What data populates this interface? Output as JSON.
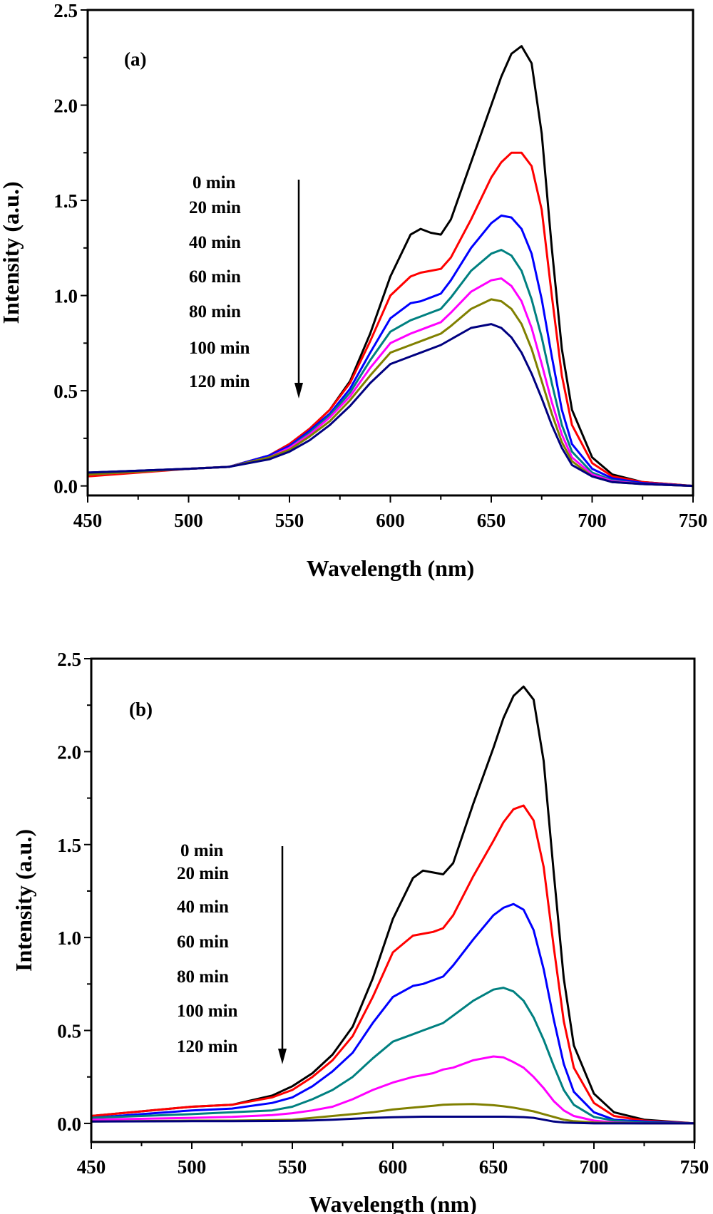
{
  "chart_data": [
    {
      "type": "line",
      "panel_label": "(a)",
      "xlabel": "Wavelength (nm)",
      "ylabel": "Intensity (a.u.)",
      "xlim": [
        450,
        750
      ],
      "ylim": [
        -0.05,
        2.5
      ],
      "xticks": [
        "450",
        "500",
        "550",
        "600",
        "650",
        "700",
        "750"
      ],
      "yticks": [
        "0.0",
        "0.5",
        "1.0",
        "1.5",
        "2.0",
        "2.5"
      ],
      "annotations": [
        "0 min",
        "20 min",
        "40 min",
        "60 min",
        "80 min",
        "100 min",
        "120 min"
      ],
      "x": [
        450,
        500,
        520,
        540,
        550,
        560,
        570,
        580,
        590,
        600,
        610,
        615,
        620,
        625,
        630,
        640,
        650,
        655,
        660,
        665,
        670,
        675,
        680,
        685,
        690,
        700,
        710,
        725,
        750
      ],
      "series": [
        {
          "name": "0 min",
          "color": "#000000",
          "values": [
            0.07,
            0.09,
            0.1,
            0.16,
            0.22,
            0.3,
            0.4,
            0.55,
            0.8,
            1.1,
            1.32,
            1.35,
            1.33,
            1.32,
            1.4,
            1.7,
            2.0,
            2.15,
            2.27,
            2.31,
            2.22,
            1.85,
            1.25,
            0.72,
            0.4,
            0.15,
            0.06,
            0.02,
            0
          ]
        },
        {
          "name": "20 min",
          "color": "#ff0000",
          "values": [
            0.05,
            0.09,
            0.1,
            0.16,
            0.22,
            0.3,
            0.4,
            0.54,
            0.76,
            1.0,
            1.1,
            1.12,
            1.13,
            1.14,
            1.2,
            1.4,
            1.62,
            1.7,
            1.75,
            1.75,
            1.68,
            1.45,
            1.0,
            0.58,
            0.32,
            0.12,
            0.05,
            0.02,
            0
          ]
        },
        {
          "name": "40 min",
          "color": "#0000ff",
          "values": [
            0.07,
            0.09,
            0.1,
            0.16,
            0.21,
            0.29,
            0.38,
            0.51,
            0.7,
            0.88,
            0.96,
            0.97,
            0.99,
            1.01,
            1.08,
            1.25,
            1.38,
            1.42,
            1.41,
            1.35,
            1.22,
            0.98,
            0.68,
            0.4,
            0.22,
            0.09,
            0.04,
            0.015,
            0
          ]
        },
        {
          "name": "60 min",
          "color": "#008080",
          "values": [
            0.06,
            0.09,
            0.1,
            0.15,
            0.2,
            0.28,
            0.37,
            0.49,
            0.66,
            0.81,
            0.87,
            0.89,
            0.91,
            0.93,
            0.99,
            1.13,
            1.22,
            1.24,
            1.21,
            1.13,
            0.98,
            0.78,
            0.54,
            0.32,
            0.18,
            0.07,
            0.03,
            0.01,
            0
          ]
        },
        {
          "name": "80 min",
          "color": "#ff00ff",
          "values": [
            0.06,
            0.09,
            0.1,
            0.15,
            0.2,
            0.27,
            0.36,
            0.47,
            0.62,
            0.75,
            0.8,
            0.82,
            0.84,
            0.86,
            0.91,
            1.02,
            1.08,
            1.09,
            1.05,
            0.97,
            0.83,
            0.64,
            0.44,
            0.27,
            0.15,
            0.06,
            0.025,
            0.01,
            0
          ]
        },
        {
          "name": "100 min",
          "color": "#808000",
          "values": [
            0.06,
            0.09,
            0.1,
            0.15,
            0.19,
            0.26,
            0.34,
            0.45,
            0.58,
            0.7,
            0.74,
            0.76,
            0.78,
            0.8,
            0.84,
            0.93,
            0.98,
            0.97,
            0.93,
            0.85,
            0.72,
            0.55,
            0.38,
            0.23,
            0.13,
            0.05,
            0.02,
            0.01,
            0
          ]
        },
        {
          "name": "120 min",
          "color": "#000080",
          "values": [
            0.07,
            0.09,
            0.1,
            0.14,
            0.18,
            0.24,
            0.32,
            0.42,
            0.54,
            0.64,
            0.68,
            0.7,
            0.72,
            0.74,
            0.77,
            0.83,
            0.85,
            0.83,
            0.78,
            0.7,
            0.59,
            0.46,
            0.32,
            0.2,
            0.11,
            0.05,
            0.02,
            0.01,
            0
          ]
        }
      ]
    },
    {
      "type": "line",
      "panel_label": "(b)",
      "xlabel": "Wavelength (nm)",
      "ylabel": "Intensity (a.u.)",
      "xlim": [
        450,
        750
      ],
      "ylim": [
        -0.1,
        2.5
      ],
      "xticks": [
        "450",
        "500",
        "550",
        "600",
        "650",
        "700",
        "750"
      ],
      "yticks": [
        "0.0",
        "0.5",
        "1.0",
        "1.5",
        "2.0",
        "2.5"
      ],
      "annotations": [
        "0 min",
        "20 min",
        "40 min",
        "60 min",
        "80 min",
        "100 min",
        "120 min"
      ],
      "x": [
        450,
        500,
        520,
        540,
        550,
        560,
        570,
        580,
        590,
        600,
        610,
        615,
        620,
        625,
        630,
        640,
        650,
        655,
        660,
        665,
        670,
        675,
        680,
        685,
        690,
        700,
        710,
        725,
        750
      ],
      "series": [
        {
          "name": "0 min",
          "color": "#000000",
          "values": [
            0.04,
            0.09,
            0.1,
            0.15,
            0.2,
            0.27,
            0.37,
            0.52,
            0.78,
            1.1,
            1.32,
            1.36,
            1.35,
            1.34,
            1.4,
            1.72,
            2.02,
            2.18,
            2.3,
            2.35,
            2.28,
            1.95,
            1.35,
            0.78,
            0.42,
            0.16,
            0.06,
            0.02,
            0
          ]
        },
        {
          "name": "20 min",
          "color": "#ff0000",
          "values": [
            0.04,
            0.09,
            0.1,
            0.14,
            0.18,
            0.25,
            0.34,
            0.47,
            0.68,
            0.92,
            1.01,
            1.02,
            1.03,
            1.05,
            1.12,
            1.33,
            1.52,
            1.62,
            1.69,
            1.71,
            1.63,
            1.38,
            0.95,
            0.55,
            0.3,
            0.11,
            0.04,
            0.015,
            0
          ]
        },
        {
          "name": "40 min",
          "color": "#0000ff",
          "values": [
            0.03,
            0.07,
            0.08,
            0.11,
            0.14,
            0.2,
            0.28,
            0.38,
            0.54,
            0.68,
            0.74,
            0.75,
            0.77,
            0.79,
            0.85,
            0.99,
            1.12,
            1.16,
            1.18,
            1.15,
            1.04,
            0.83,
            0.56,
            0.32,
            0.17,
            0.06,
            0.02,
            0.01,
            0
          ]
        },
        {
          "name": "60 min",
          "color": "#008080",
          "values": [
            0.03,
            0.05,
            0.06,
            0.07,
            0.09,
            0.13,
            0.18,
            0.25,
            0.35,
            0.44,
            0.48,
            0.5,
            0.52,
            0.54,
            0.58,
            0.66,
            0.72,
            0.73,
            0.71,
            0.66,
            0.57,
            0.45,
            0.31,
            0.18,
            0.1,
            0.035,
            0.015,
            0.005,
            0
          ]
        },
        {
          "name": "80 min",
          "color": "#ff00ff",
          "values": [
            0.02,
            0.03,
            0.035,
            0.045,
            0.055,
            0.07,
            0.09,
            0.13,
            0.18,
            0.22,
            0.25,
            0.26,
            0.27,
            0.29,
            0.3,
            0.34,
            0.36,
            0.355,
            0.33,
            0.3,
            0.25,
            0.19,
            0.12,
            0.07,
            0.04,
            0.015,
            0.005,
            0,
            0
          ]
        },
        {
          "name": "100 min",
          "color": "#808000",
          "values": [
            0.01,
            0.015,
            0.015,
            0.018,
            0.02,
            0.03,
            0.04,
            0.05,
            0.06,
            0.075,
            0.085,
            0.09,
            0.095,
            0.1,
            0.102,
            0.104,
            0.098,
            0.092,
            0.085,
            0.075,
            0.065,
            0.05,
            0.035,
            0.02,
            0.012,
            0.005,
            0.002,
            0,
            0
          ]
        },
        {
          "name": "120 min",
          "color": "#000080",
          "values": [
            0.01,
            0.012,
            0.012,
            0.013,
            0.014,
            0.016,
            0.02,
            0.025,
            0.03,
            0.033,
            0.035,
            0.036,
            0.036,
            0.036,
            0.036,
            0.036,
            0.036,
            0.036,
            0.035,
            0.034,
            0.03,
            0.02,
            0.01,
            0.005,
            0.003,
            0,
            0,
            0,
            0
          ]
        }
      ]
    }
  ]
}
